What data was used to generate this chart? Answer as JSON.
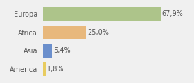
{
  "categories": [
    "Europa",
    "Africa",
    "Asia",
    "America"
  ],
  "values": [
    67.9,
    25.0,
    5.4,
    1.8
  ],
  "labels": [
    "67,9%",
    "25,0%",
    "5,4%",
    "1,8%"
  ],
  "bar_colors": [
    "#adc48a",
    "#e8b87c",
    "#6b8fcc",
    "#e8cc60"
  ],
  "background_color": "#f0f0f0",
  "xlim": [
    0,
    85
  ],
  "bar_height": 0.75,
  "label_fontsize": 7.0,
  "category_fontsize": 7.0
}
